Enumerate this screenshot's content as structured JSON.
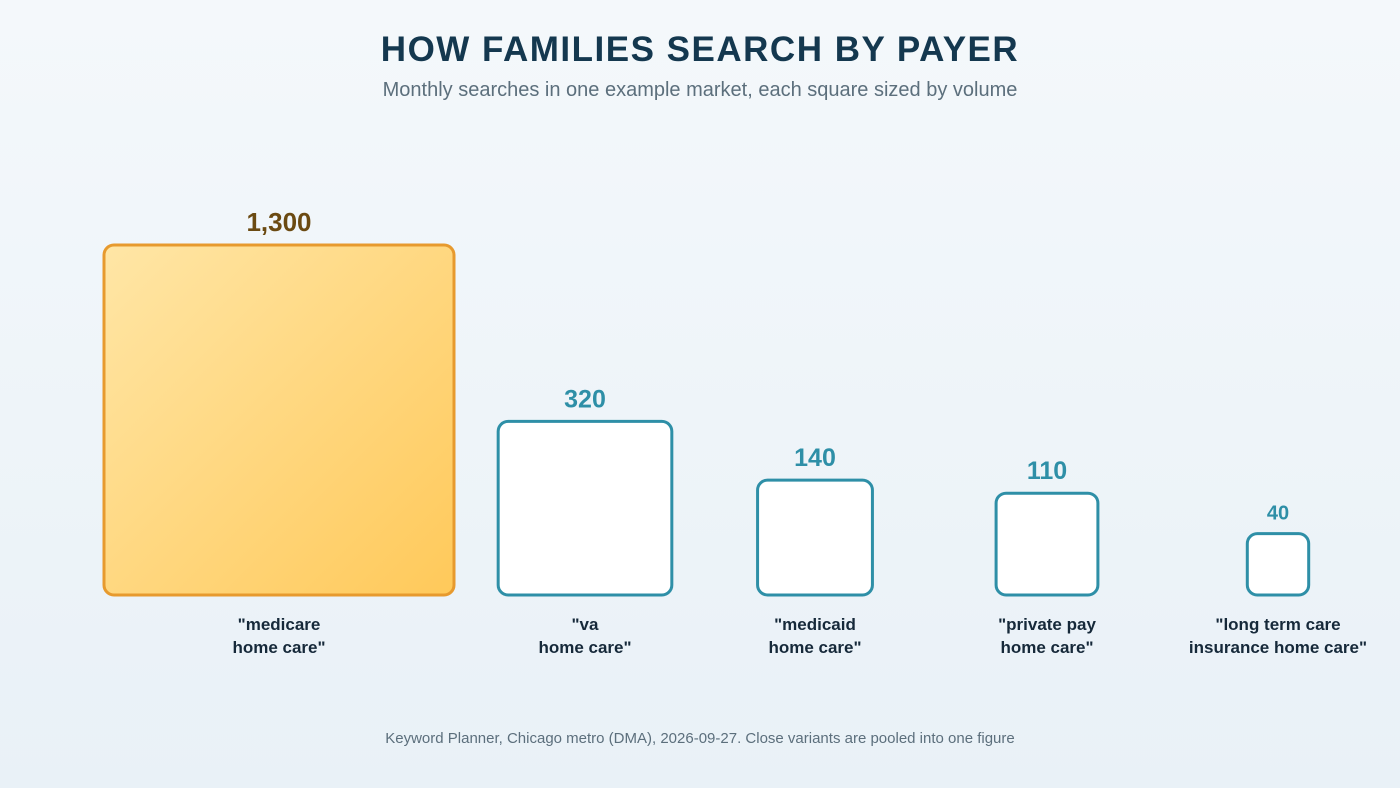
{
  "header": {
    "title": "HOW FAMILIES SEARCH BY PAYER",
    "subtitle": "Monthly searches in one example market, each square sized by volume"
  },
  "footer": {
    "source": "Keyword Planner, Chicago metro (DMA), 2026-09-27. Close variants are pooled into one figure"
  },
  "colors": {
    "highlight_fill_start": "#ffe6a6",
    "highlight_fill_end": "#ffc95a",
    "highlight_stroke": "#e79a2e",
    "highlight_text": "#6b4a12",
    "default_fill": "#ffffff",
    "default_stroke": "#2e8fa7",
    "default_text": "#2e8fa7"
  },
  "chart_data": {
    "type": "bar",
    "encoding": "square area proportional to value",
    "title": "HOW FAMILIES SEARCH BY PAYER",
    "subtitle": "Monthly searches in one example market, each square sized by volume",
    "categories": [
      "\"medicare home care\"",
      "\"va home care\"",
      "\"medicaid home care\"",
      "\"private pay home care\"",
      "\"long term care insurance home care\""
    ],
    "category_lines": [
      [
        "\"medicare",
        "home care\""
      ],
      [
        "\"va",
        "home care\""
      ],
      [
        "\"medicaid",
        "home care\""
      ],
      [
        "\"private pay",
        "home care\""
      ],
      [
        "\"long term care",
        "insurance home care\""
      ]
    ],
    "values": [
      1300,
      320,
      140,
      110,
      40
    ],
    "value_labels": [
      "1,300",
      "320",
      "140",
      "110",
      "40"
    ],
    "highlight_index": 0,
    "grid": false,
    "legend": "none"
  }
}
